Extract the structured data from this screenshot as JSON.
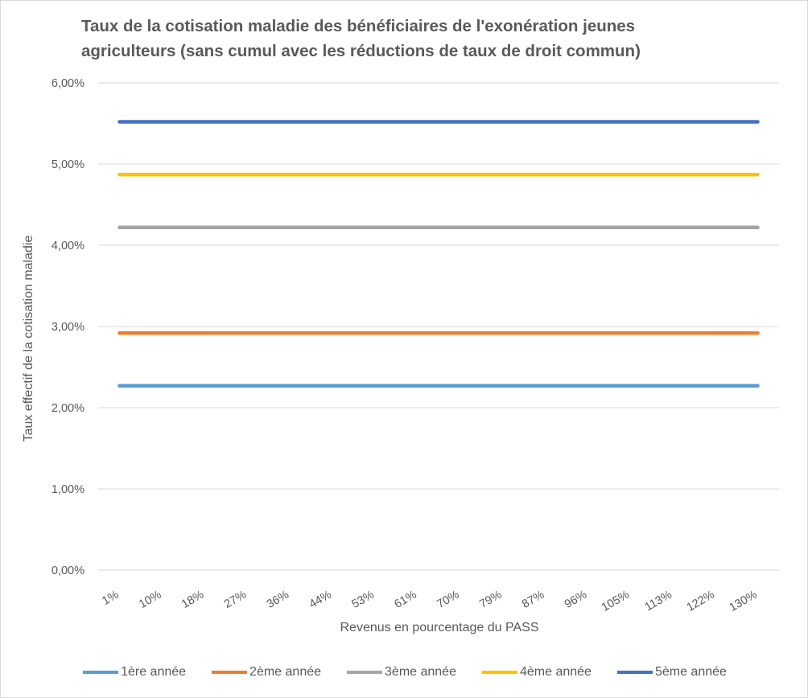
{
  "chart_data": {
    "type": "line",
    "title": "Taux de la cotisation maladie des bénéficiaires de l'exonération jeunes agriculteurs (sans cumul avec les réductions de taux de droit commun)",
    "xlabel": "Revenus en pourcentage du PASS",
    "ylabel": "Taux effectif de la cotisation maladie",
    "categories": [
      "1%",
      "10%",
      "18%",
      "27%",
      "36%",
      "44%",
      "53%",
      "61%",
      "70%",
      "79%",
      "87%",
      "96%",
      "105%",
      "113%",
      "122%",
      "130%"
    ],
    "ylim": [
      0,
      0.06
    ],
    "yticks": [
      "0,00%",
      "1,00%",
      "2,00%",
      "3,00%",
      "4,00%",
      "5,00%",
      "6,00%"
    ],
    "grid": true,
    "legend_position": "bottom",
    "series": [
      {
        "name": "1ère année",
        "color": "#5b9bd5",
        "values": [
          0.0227,
          0.0227,
          0.0227,
          0.0227,
          0.0227,
          0.0227,
          0.0227,
          0.0227,
          0.0227,
          0.0227,
          0.0227,
          0.0227,
          0.0227,
          0.0227,
          0.0227,
          0.0227
        ]
      },
      {
        "name": "2ème année",
        "color": "#ed7d31",
        "values": [
          0.0292,
          0.0292,
          0.0292,
          0.0292,
          0.0292,
          0.0292,
          0.0292,
          0.0292,
          0.0292,
          0.0292,
          0.0292,
          0.0292,
          0.0292,
          0.0292,
          0.0292,
          0.0292
        ]
      },
      {
        "name": "3ème année",
        "color": "#a5a5a5",
        "values": [
          0.0422,
          0.0422,
          0.0422,
          0.0422,
          0.0422,
          0.0422,
          0.0422,
          0.0422,
          0.0422,
          0.0422,
          0.0422,
          0.0422,
          0.0422,
          0.0422,
          0.0422,
          0.0422
        ]
      },
      {
        "name": "4ème année",
        "color": "#ffc000",
        "values": [
          0.0487,
          0.0487,
          0.0487,
          0.0487,
          0.0487,
          0.0487,
          0.0487,
          0.0487,
          0.0487,
          0.0487,
          0.0487,
          0.0487,
          0.0487,
          0.0487,
          0.0487,
          0.0487
        ]
      },
      {
        "name": "5ème année",
        "color": "#4472c4",
        "values": [
          0.0552,
          0.0552,
          0.0552,
          0.0552,
          0.0552,
          0.0552,
          0.0552,
          0.0552,
          0.0552,
          0.0552,
          0.0552,
          0.0552,
          0.0552,
          0.0552,
          0.0552,
          0.0552
        ]
      }
    ]
  }
}
